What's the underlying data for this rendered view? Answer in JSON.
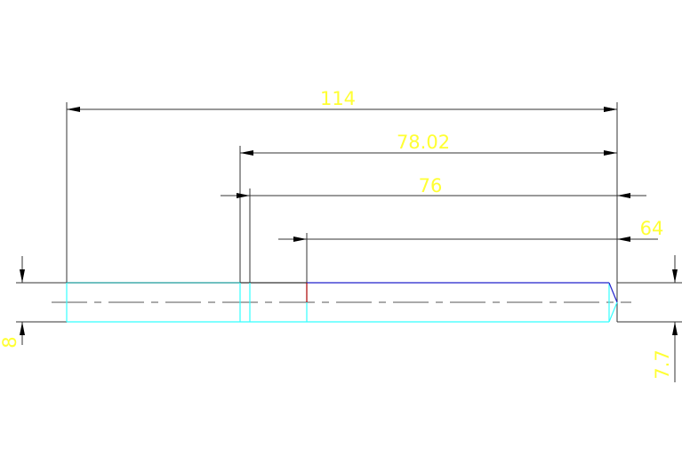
{
  "dimensions": {
    "overall_length": "114",
    "length_a": "78.02",
    "length_b": "76",
    "length_c": "64",
    "left_height": "8",
    "right_height": "7.7"
  },
  "colors": {
    "background": "#ffffff",
    "dimension_text": "#ffff33",
    "dimension_line": "#000000",
    "part_outline_cyan": "#33ffff",
    "part_outline_blue": "#2222cc",
    "marker_red": "#aa0000"
  }
}
